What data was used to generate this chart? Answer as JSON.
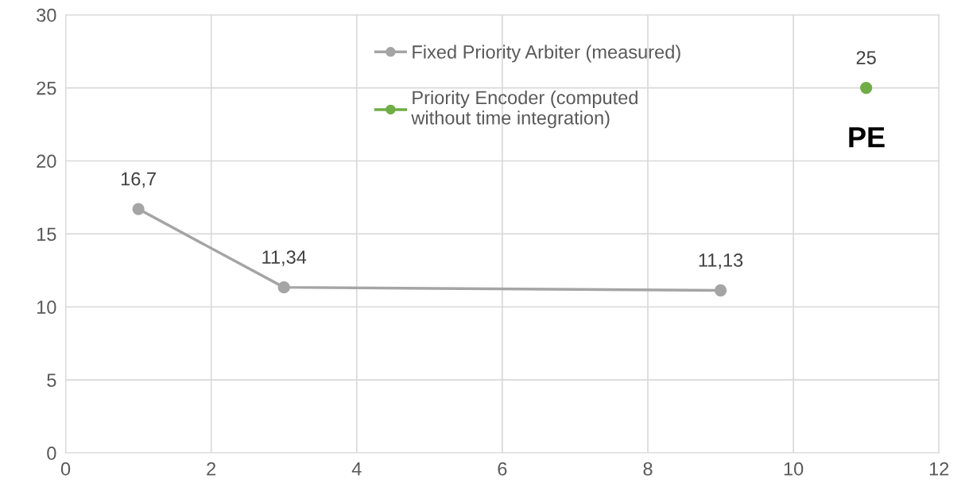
{
  "chart_data": {
    "type": "line",
    "xlim": [
      0,
      12
    ],
    "xticks": [
      0,
      2,
      4,
      6,
      8,
      10,
      12
    ],
    "ylim": [
      0,
      30
    ],
    "yticks": [
      0,
      5,
      10,
      15,
      20,
      25,
      30
    ],
    "grid": true,
    "legend": "top",
    "marker": "circle",
    "line_style": "solid",
    "series": [
      {
        "name": "Fixed Priority Arbiter (measured)",
        "color": "#a5a5a5",
        "x": [
          1,
          3,
          9
        ],
        "values": [
          16.7,
          11.34,
          11.13
        ],
        "value_labels": [
          "16,7",
          "11,34",
          "11,13"
        ]
      },
      {
        "name": "Priority Encoder (computed without time integration)",
        "color": "#70ad47",
        "x": [
          11
        ],
        "values": [
          25
        ],
        "value_labels": [
          "25"
        ]
      }
    ],
    "annotations": [
      "PE"
    ]
  }
}
